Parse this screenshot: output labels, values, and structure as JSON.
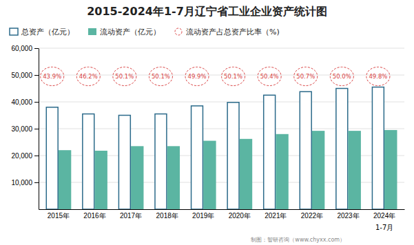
{
  "chart_data": {
    "type": "bar",
    "title": "2015-2024年1-7月辽宁省工业企业资产统计图",
    "categories": [
      "2015年",
      "2016年",
      "2017年",
      "2018年",
      "2019年",
      "2020年",
      "2021年",
      "2022年",
      "2023年",
      "2024年"
    ],
    "series": [
      {
        "name": "总资产（亿元）",
        "type": "bar",
        "color": "#2B6A8A",
        "values": [
          38000,
          35500,
          35000,
          35500,
          38500,
          39800,
          42500,
          43800,
          45000,
          45500
        ]
      },
      {
        "name": "流动资产（亿元）",
        "type": "bar",
        "color": "#5BB5A2",
        "values": [
          22000,
          21800,
          23500,
          23500,
          25500,
          26200,
          28000,
          29200,
          29200,
          29500
        ]
      },
      {
        "name": "流动资产占总资产比率（%)",
        "type": "scatter",
        "color": "#D94040",
        "marker": "circle",
        "line_style": "dashed",
        "data_labels": true,
        "values": [
          43.9,
          46.2,
          50.1,
          50.1,
          49.9,
          50.1,
          50.4,
          50.7,
          50.0,
          49.8
        ],
        "value_labels": [
          "43.9%",
          "46.2%",
          "50.1%",
          "50.1%",
          "49.9%",
          "50.1%",
          "50.4%",
          "50.7%",
          "50.0%",
          "49.8%"
        ]
      }
    ],
    "annotations": [
      "1-7月",
      "制图：智研咨询（www.chyxx.com）"
    ],
    "ylim": [
      0,
      60000
    ],
    "yticks": [
      {
        "value": 10000,
        "label": "10,000"
      },
      {
        "value": 20000,
        "label": "20,000"
      },
      {
        "value": 30000,
        "label": "30,000"
      },
      {
        "value": 40000,
        "label": "40,000"
      },
      {
        "value": 50000,
        "label": "50,000"
      },
      {
        "value": 60000,
        "label": "60,000"
      }
    ],
    "grid": true,
    "legend": "top"
  }
}
